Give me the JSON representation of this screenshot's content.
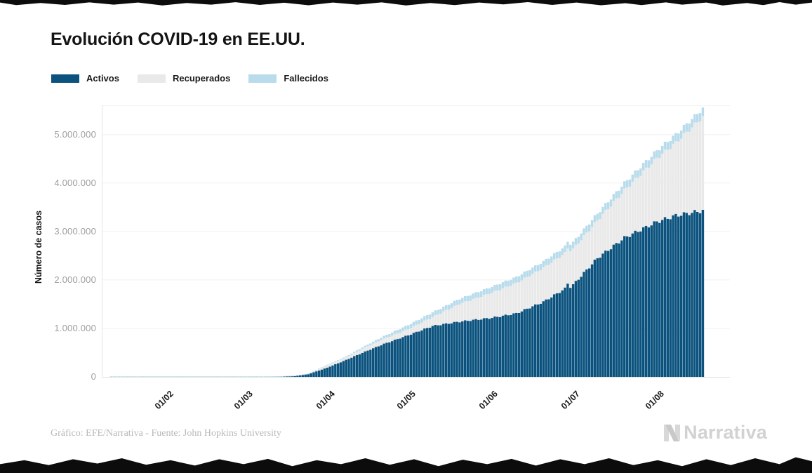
{
  "page": {
    "title": "Evolución COVID-19 en EE.UU.",
    "footer": "Gráfico: EFE/Narrativa - Fuente: John Hopkins University",
    "brand": "Narrativa"
  },
  "legend": [
    {
      "label": "Activos",
      "color": "#0b537e"
    },
    {
      "label": "Recuperados",
      "color": "#e9e9e9"
    },
    {
      "label": "Fallecidos",
      "color": "#b8dcec"
    }
  ],
  "chart_data": {
    "type": "bar",
    "stacked": true,
    "title": "Evolución COVID-19 en EE.UU.",
    "xlabel": "",
    "ylabel": "Número de casos",
    "grid": true,
    "legend_position": "top",
    "ylim": [
      0,
      5600000
    ],
    "y_tick_labels": [
      "5.000.000",
      "4.000.000",
      "3.000.000",
      "2.000.000",
      "1.000.000",
      "0"
    ],
    "y_tick_values": [
      5000000,
      4000000,
      3000000,
      2000000,
      1000000,
      0
    ],
    "x_tick_labels": [
      "01/02",
      "01/03",
      "01/04",
      "01/05",
      "01/06",
      "01/07",
      "01/08"
    ],
    "series_names": [
      "Activos",
      "Recuperados",
      "Fallecidos"
    ],
    "colors": {
      "activos": "#0b537e",
      "recuperados": "#e9e9e9",
      "fallecidos": "#b8dcec"
    },
    "anchors": [
      {
        "day": 0,
        "date": "09/01",
        "activos": 0,
        "recuperados": 0,
        "fallecidos": 0
      },
      {
        "day": 23,
        "date": "01/02",
        "activos": 200,
        "recuperados": 10,
        "fallecidos": 5
      },
      {
        "day": 52,
        "date": "01/03",
        "activos": 60,
        "recuperados": 5,
        "fallecidos": 1
      },
      {
        "day": 61,
        "date": "10/03",
        "activos": 600,
        "recuperados": 30,
        "fallecidos": 25
      },
      {
        "day": 66,
        "date": "15/03",
        "activos": 3500,
        "recuperados": 70,
        "fallecidos": 60
      },
      {
        "day": 71,
        "date": "20/03",
        "activos": 14000,
        "recuperados": 250,
        "fallecidos": 300
      },
      {
        "day": 76,
        "date": "25/03",
        "activos": 55000,
        "recuperados": 1000,
        "fallecidos": 1500
      },
      {
        "day": 83,
        "date": "01/04",
        "activos": 190000,
        "recuperados": 48000,
        "fallecidos": 7000
      },
      {
        "day": 90,
        "date": "08/04",
        "activos": 350000,
        "recuperados": 55000,
        "fallecidos": 17000
      },
      {
        "day": 97,
        "date": "15/04",
        "activos": 520000,
        "recuperados": 86000,
        "fallecidos": 32000
      },
      {
        "day": 104,
        "date": "22/04",
        "activos": 680000,
        "recuperados": 108000,
        "fallecidos": 52000
      },
      {
        "day": 113,
        "date": "01/05",
        "activos": 860000,
        "recuperados": 125000,
        "fallecidos": 85000
      },
      {
        "day": 122,
        "date": "10/05",
        "activos": 1050000,
        "recuperados": 185000,
        "fallecidos": 95000
      },
      {
        "day": 132,
        "date": "20/05",
        "activos": 1140000,
        "recuperados": 365000,
        "fallecidos": 105000
      },
      {
        "day": 144,
        "date": "01/06",
        "activos": 1220000,
        "recuperados": 520000,
        "fallecidos": 120000
      },
      {
        "day": 153,
        "date": "10/06",
        "activos": 1310000,
        "recuperados": 625000,
        "fallecidos": 125000
      },
      {
        "day": 163,
        "date": "20/06",
        "activos": 1550000,
        "recuperados": 700000,
        "fallecidos": 130000
      },
      {
        "day": 171,
        "date": "28/06",
        "activos": 1820000,
        "recuperados": 733000,
        "fallecidos": 136000
      },
      {
        "day": 172,
        "date": "29/06",
        "activos": 1930000,
        "recuperados": 726000,
        "fallecidos": 136500
      },
      {
        "day": 173,
        "date": "30/06",
        "activos": 1860000,
        "recuperados": 752000,
        "fallecidos": 137000
      },
      {
        "day": 174,
        "date": "01/07",
        "activos": 1900000,
        "recuperados": 740000,
        "fallecidos": 138000
      },
      {
        "day": 183,
        "date": "10/07",
        "activos": 2450000,
        "recuperados": 778000,
        "fallecidos": 142000
      },
      {
        "day": 193,
        "date": "20/07",
        "activos": 2870000,
        "recuperados": 982000,
        "fallecidos": 148000
      },
      {
        "day": 205,
        "date": "01/08",
        "activos": 3200000,
        "recuperados": 1312000,
        "fallecidos": 158000
      },
      {
        "day": 212,
        "date": "08/08",
        "activos": 3330000,
        "recuperados": 1503000,
        "fallecidos": 167000
      },
      {
        "day": 222,
        "date": "18/08",
        "activos": 3430000,
        "recuperados": 1935000,
        "fallecidos": 175000
      }
    ]
  }
}
